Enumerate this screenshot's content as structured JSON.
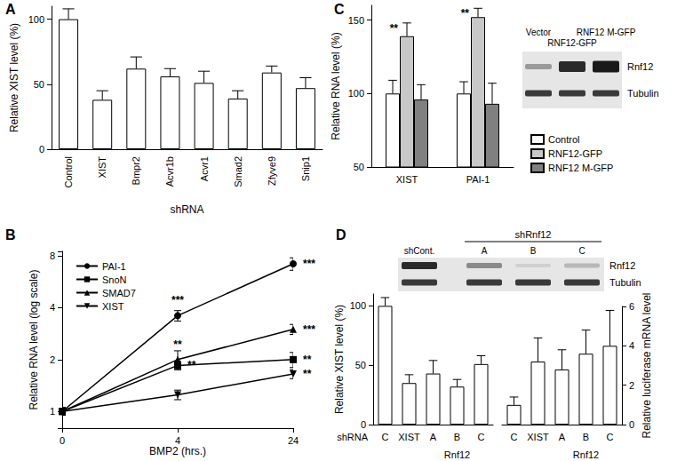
{
  "chart_data": [
    {
      "type": "bar",
      "panel": "A",
      "categories": [
        "Control",
        "XIST",
        "Bmpr2",
        "Acvr1b",
        "Acvr1",
        "Smad2",
        "Zfyve9",
        "Snip1"
      ],
      "values": [
        100,
        38,
        62,
        56,
        51,
        39,
        59,
        47
      ],
      "errors": [
        8,
        7,
        9,
        6,
        9,
        6,
        5,
        8
      ],
      "color": "#ffffff",
      "xlabel": "shRNA",
      "ylabel": "Relative XIST level (%)",
      "ylim": [
        0,
        110
      ],
      "yticks": [
        0,
        50,
        100
      ]
    },
    {
      "type": "line",
      "panel": "B",
      "categories": [
        "0",
        "4",
        "24"
      ],
      "xlabel": "BMP2 (hrs.)",
      "ylabel": "Relative RNA level (log scale)",
      "log": "y",
      "ylim": [
        0.8,
        8.5
      ],
      "yticks": [
        1,
        2,
        4,
        8
      ],
      "legend": "upper left",
      "series": [
        {
          "name": "PAI-1",
          "color": "#000000",
          "marker": "circle",
          "values": [
            1,
            3.6,
            7.2
          ],
          "errors": [
            0.05,
            0.25,
            0.6
          ],
          "annotations": [
            null,
            "***",
            "***"
          ]
        },
        {
          "name": "SnoN",
          "color": "#000000",
          "marker": "square",
          "values": [
            1,
            1.85,
            2.0
          ],
          "errors": [
            0.05,
            0.1,
            0.2
          ],
          "annotations": [
            null,
            "**",
            "**"
          ]
        },
        {
          "name": "SMAD7",
          "color": "#000000",
          "marker": "triangle",
          "values": [
            1,
            2.0,
            3.0
          ],
          "errors": [
            0.05,
            0.25,
            0.2
          ],
          "annotations": [
            null,
            "**",
            "***"
          ]
        },
        {
          "name": "XIST",
          "color": "#000000",
          "marker": "triangle-down",
          "values": [
            1,
            1.25,
            1.65
          ],
          "errors": [
            0.05,
            0.08,
            0.1
          ],
          "annotations": [
            null,
            null,
            "**"
          ]
        }
      ]
    },
    {
      "type": "bar",
      "panel": "C",
      "categories": [
        "XIST",
        "PAI-1"
      ],
      "ylabel": "Relative RNA level (%)",
      "ylim": [
        50,
        160
      ],
      "yticks": [
        50,
        100,
        150
      ],
      "legend": "right",
      "series": [
        {
          "name": "Control",
          "color": "#ffffff",
          "values": [
            100,
            100
          ],
          "errors": [
            9,
            8
          ]
        },
        {
          "name": "RNF12-GFP",
          "color": "#c8c8c8",
          "values": [
            139,
            152
          ],
          "errors": [
            9,
            6
          ],
          "annotations": [
            "**",
            "**"
          ]
        },
        {
          "name": "RNF12 M-GFP",
          "color": "#808080",
          "values": [
            96,
            93
          ],
          "errors": [
            10,
            14
          ]
        }
      ],
      "blot": {
        "lanes": [
          "Vector",
          "RNF12-GFP",
          "RNF12 M-GFP"
        ],
        "proteins": [
          "Rnf12",
          "Tubulin"
        ]
      }
    },
    {
      "type": "bar",
      "panel": "D",
      "categories": [
        "C",
        "XIST",
        "A",
        "B",
        "C"
      ],
      "category_groups": [
        null,
        null,
        "Rnf12",
        "Rnf12",
        "Rnf12"
      ],
      "values": [
        100,
        35,
        43,
        32,
        51
      ],
      "errors": [
        7,
        7,
        11,
        6,
        7
      ],
      "color": "#ffffff",
      "xlabel": "shRNA",
      "ylabel": "Relative XIST level (%)",
      "ylim": [
        0,
        110
      ],
      "yticks": [
        0,
        50,
        100
      ],
      "blot": {
        "lanes": [
          "shCont.",
          "A",
          "B",
          "C"
        ],
        "lane_groups": [
          null,
          "shRnf12",
          "shRnf12",
          "shRnf12"
        ],
        "proteins": [
          "Rnf12",
          "Tubulin"
        ]
      }
    },
    {
      "type": "bar",
      "categories": [
        "C",
        "XIST",
        "A",
        "B",
        "C"
      ],
      "category_groups": [
        null,
        null,
        "Rnf12",
        "Rnf12",
        "Rnf12"
      ],
      "values": [
        1,
        3.2,
        2.8,
        3.6,
        4.0
      ],
      "errors": [
        0.4,
        1.2,
        1.0,
        1.2,
        1.8
      ],
      "color": "#ffffff",
      "ylabel": "Relative luciferase mRNA level",
      "ylim": [
        0,
        6
      ],
      "yticks": [
        0,
        2,
        4,
        6
      ]
    }
  ]
}
